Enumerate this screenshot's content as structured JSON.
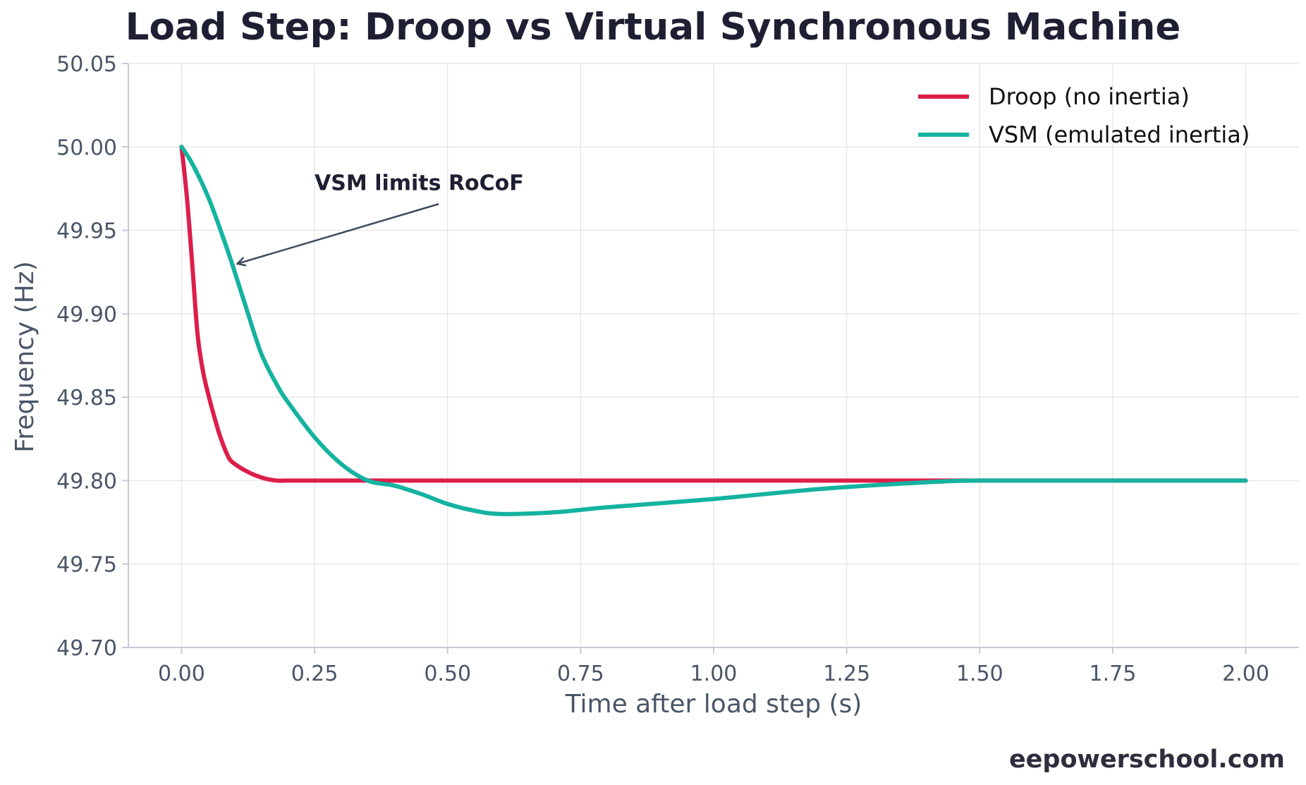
{
  "chart_data": {
    "type": "line",
    "title": "Load Step: Droop vs Virtual Synchronous Machine",
    "xlabel": "Time after load step (s)",
    "ylabel": "Frequency (Hz)",
    "xlim": [
      -0.1,
      2.1
    ],
    "ylim": [
      49.7,
      50.05
    ],
    "x_ticks": [
      "0.00",
      "0.25",
      "0.50",
      "0.75",
      "1.00",
      "1.25",
      "1.50",
      "1.75",
      "2.00"
    ],
    "y_ticks": [
      "49.70",
      "49.75",
      "49.80",
      "49.85",
      "49.90",
      "49.95",
      "50.00",
      "50.05"
    ],
    "grid": true,
    "legend_position": "top-right",
    "series": [
      {
        "name": "Droop (no inertia)",
        "color": "#dc1e4a",
        "x": [
          0,
          0.01,
          0.02,
          0.03,
          0.04,
          0.05,
          0.06,
          0.07,
          0.08,
          0.09,
          0.1,
          0.12,
          0.14,
          0.16,
          0.18,
          0.2,
          0.25,
          0.5,
          1.0,
          1.5,
          2.0
        ],
        "y": [
          50.0,
          49.97,
          49.93,
          49.888,
          49.866,
          49.852,
          49.84,
          49.829,
          49.82,
          49.813,
          49.81,
          49.806,
          49.803,
          49.801,
          49.8,
          49.8,
          49.8,
          49.8,
          49.8,
          49.8,
          49.8
        ]
      },
      {
        "name": "VSM (emulated inertia)",
        "color": "#14b3a0",
        "x": [
          0,
          0.02,
          0.05,
          0.08,
          0.1,
          0.12,
          0.15,
          0.18,
          0.2,
          0.25,
          0.3,
          0.35,
          0.4,
          0.45,
          0.5,
          0.55,
          0.6,
          0.7,
          0.8,
          1.0,
          1.2,
          1.4,
          1.5,
          1.7,
          2.0
        ],
        "y": [
          50.0,
          49.99,
          49.97,
          49.944,
          49.925,
          49.905,
          49.876,
          49.857,
          49.847,
          49.826,
          49.81,
          49.8,
          49.797,
          49.792,
          49.786,
          49.782,
          49.78,
          49.781,
          49.784,
          49.789,
          49.795,
          49.799,
          49.8,
          49.8,
          49.8
        ]
      }
    ],
    "annotations": [
      {
        "text": "VSM limits RoCoF",
        "x": 0.25,
        "y": 49.97,
        "arrow_to": [
          0.105,
          49.93
        ]
      }
    ]
  },
  "watermark": "eepowerschool.com",
  "colors": {
    "axis": "#c8c8d8",
    "grid": "#e2e2ea",
    "arrow": "#3f4a5c",
    "text": "#1f1f33"
  }
}
